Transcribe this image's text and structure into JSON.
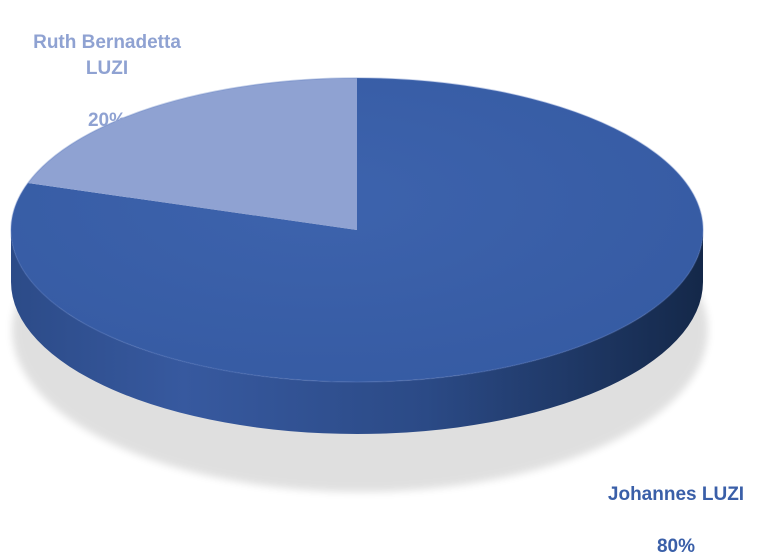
{
  "chart_data": {
    "type": "pie",
    "style": "3d",
    "title": "",
    "categories": [
      "Johannes LUZI",
      "Ruth Bernadetta LUZI"
    ],
    "values": [
      80,
      20
    ],
    "data_labels": [
      {
        "name": "Johannes LUZI",
        "value": "80%"
      },
      {
        "name": "Ruth Bernadetta LUZI",
        "value": "20%"
      }
    ],
    "colors": [
      "#3a5fa8",
      "#8fa2d2"
    ],
    "label_colors": [
      "#3a5fa8",
      "#8fa2d2"
    ],
    "legend": "none"
  }
}
